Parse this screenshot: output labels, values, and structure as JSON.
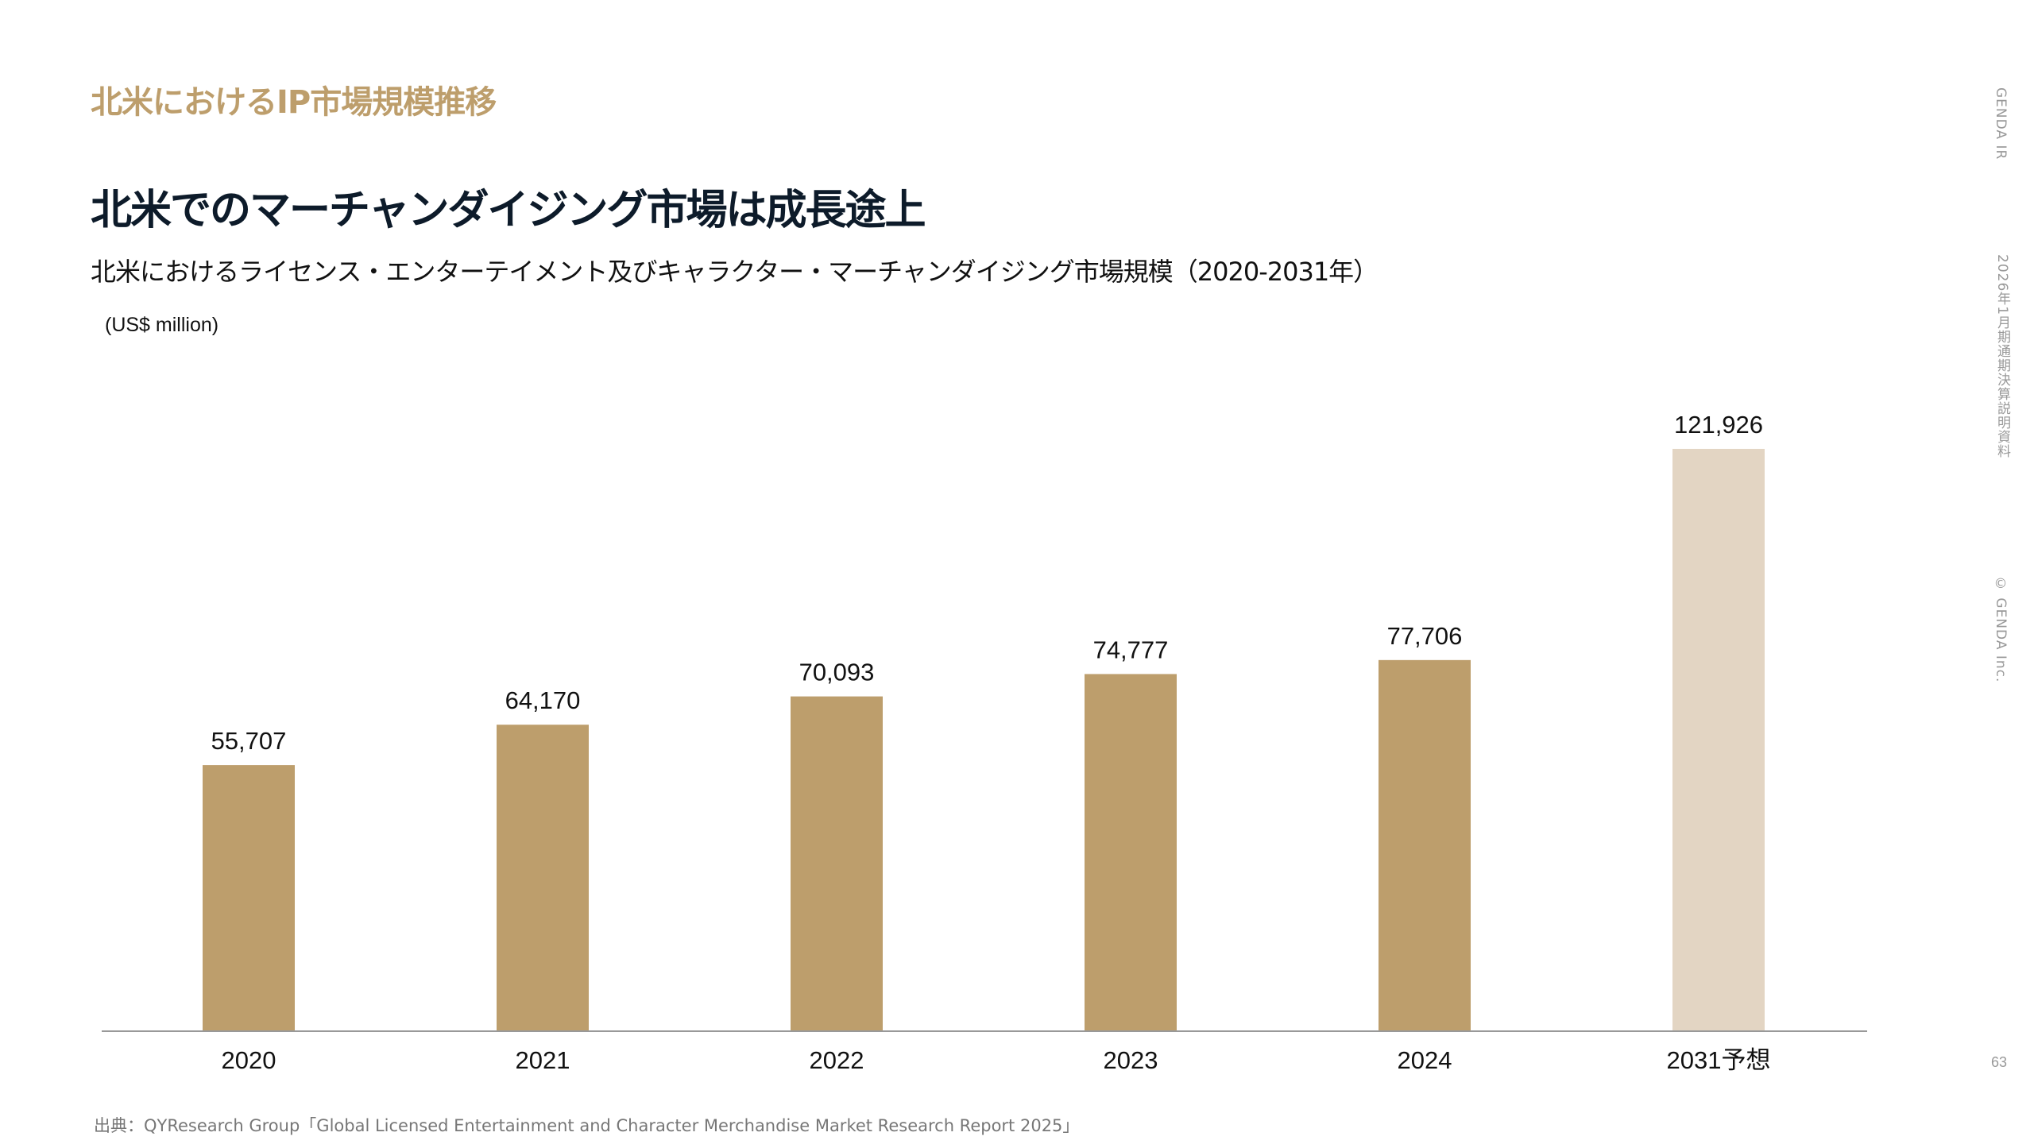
{
  "section_title": "北米におけるIP市場規模推移",
  "headline": "北米でのマーチャンダイジング市場は成長途上",
  "sidebar": {
    "label_1": "GENDA IR",
    "label_2": "2026年1月期通期決算説明資料",
    "label_3": "© GENDA Inc."
  },
  "page_number": "63",
  "source": "出典：QYResearch Group「Global Licensed Entertainment and Character Merchandise Market Research Report 2025」",
  "colors": {
    "accent": "#bd9e6c",
    "bar_actual": "#bd9e6c",
    "bar_forecast": "#e3d5c3",
    "headline": "#0d1b2a",
    "axis": "#999999"
  },
  "chart_data": {
    "type": "bar",
    "title": "北米におけるライセンス・エンターテイメント及びキャラクター・マーチャンダイジング市場規模（2020-2031年）",
    "ylabel": "(US$ million)",
    "xlabel": "",
    "categories": [
      "2020",
      "2021",
      "2022",
      "2023",
      "2024",
      "2031予想"
    ],
    "values": [
      55707,
      64170,
      70093,
      74777,
      77706,
      121926
    ],
    "value_labels": [
      "55,707",
      "64,170",
      "70,093",
      "74,777",
      "77,706",
      "121,926"
    ],
    "forecast": [
      false,
      false,
      false,
      false,
      false,
      true
    ],
    "ylim": [
      0,
      121926
    ],
    "grid": false,
    "legend": "none"
  }
}
